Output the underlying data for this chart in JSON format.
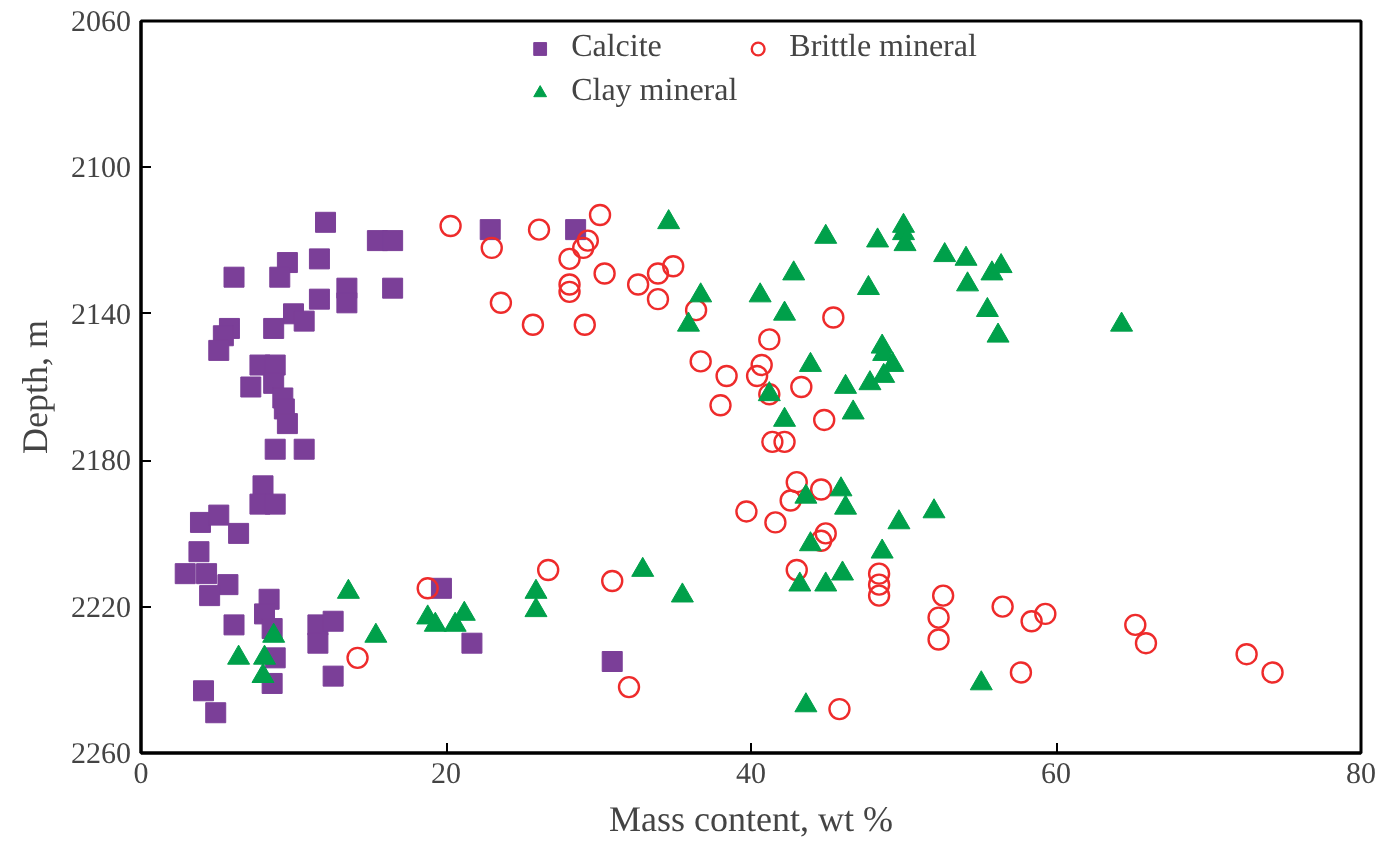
{
  "chart_data": {
    "type": "scatter",
    "xlabel": "Mass content, wt %",
    "ylabel": "Depth, m",
    "xlim": [
      0,
      80
    ],
    "xticks": [
      0,
      20,
      40,
      60,
      80
    ],
    "ylim": [
      2260,
      2060
    ],
    "yticks": [
      2060,
      2100,
      2140,
      2180,
      2220,
      2260
    ],
    "grid": false,
    "legend": "top",
    "series": [
      {
        "name": "Calcite",
        "color": "#7b3f98",
        "marker": "square",
        "x": [
          12.1,
          22.9,
          28.5,
          15.5,
          16.5,
          9.6,
          11.7,
          6.1,
          9.1,
          13.5,
          16.5,
          13.5,
          11.7,
          10.0,
          10.7,
          8.7,
          5.8,
          5.4,
          5.1,
          7.8,
          8.8,
          7.2,
          8.7,
          9.3,
          9.4,
          9.6,
          8.8,
          10.7,
          8.0,
          7.8,
          8.8,
          3.9,
          5.1,
          6.4,
          3.8,
          2.9,
          4.3,
          5.7,
          4.5,
          8.4,
          8.1,
          8.6,
          6.1,
          11.6,
          12.6,
          11.6,
          8.8,
          8.6,
          12.6,
          4.1,
          4.9,
          19.7,
          21.7,
          30.9
        ],
        "values": [
          2115,
          2117,
          2117,
          2120,
          2120,
          2126,
          2125,
          2130,
          2130,
          2133,
          2133,
          2137,
          2136,
          2140,
          2142,
          2144,
          2144,
          2146,
          2150,
          2154,
          2154,
          2160,
          2159,
          2163,
          2166,
          2170,
          2177,
          2177,
          2187,
          2192,
          2192,
          2197,
          2195,
          2200,
          2205,
          2211,
          2211,
          2214,
          2217,
          2218,
          2222,
          2226,
          2225,
          2225,
          2224,
          2230,
          2234,
          2241,
          2239,
          2243,
          2249,
          2215,
          2230,
          2235
        ]
      },
      {
        "name": "Brittle mineral",
        "color": "#ee2b2b",
        "marker": "circle_open",
        "x": [
          20.3,
          23.0,
          23.6,
          18.8,
          14.2,
          26.1,
          30.1,
          29.3,
          29.0,
          28.1,
          30.4,
          28.1,
          28.1,
          32.6,
          25.7,
          29.1,
          26.7,
          30.9,
          32.0,
          33.9,
          34.9,
          33.9,
          36.4,
          45.4,
          41.2,
          36.7,
          40.7,
          40.4,
          38.4,
          41.2,
          43.3,
          38.0,
          44.8,
          41.4,
          42.2,
          43.0,
          44.6,
          42.6,
          39.7,
          41.6,
          44.9,
          44.6,
          43.0,
          48.4,
          48.4,
          48.4,
          52.6,
          52.3,
          52.3,
          45.8,
          56.5,
          58.4,
          59.3,
          57.7,
          65.2,
          65.9,
          72.5,
          74.2
        ],
        "values": [
          2116,
          2122,
          2137,
          2215,
          2234,
          2117,
          2113,
          2120,
          2122,
          2125,
          2129,
          2132,
          2134,
          2132,
          2143,
          2143,
          2210,
          2213,
          2242,
          2129,
          2127,
          2136,
          2139,
          2141,
          2147,
          2153,
          2154,
          2157,
          2157,
          2162,
          2160,
          2165,
          2169,
          2175,
          2175,
          2186,
          2188,
          2191,
          2194,
          2197,
          2200,
          2202,
          2210,
          2211,
          2214,
          2217,
          2217,
          2223,
          2229,
          2248,
          2220,
          2224,
          2222,
          2238,
          2225,
          2230,
          2233,
          2238
        ]
      },
      {
        "name": "Clay mineral",
        "color": "#00a04a",
        "marker": "triangle",
        "x": [
          13.6,
          18.8,
          19.3,
          20.6,
          21.2,
          15.4,
          8.7,
          6.4,
          8.1,
          8.0,
          25.9,
          25.9,
          32.9,
          34.6,
          35.5,
          44.9,
          48.3,
          50.0,
          50.0,
          50.1,
          52.7,
          54.1,
          55.8,
          54.2,
          42.8,
          36.7,
          40.6,
          47.7,
          35.9,
          42.2,
          55.5,
          56.2,
          48.6,
          48.7,
          49.3,
          48.7,
          47.8,
          46.2,
          43.9,
          41.2,
          46.7,
          42.2,
          45.9,
          46.2,
          43.6,
          49.7,
          52.0,
          43.9,
          48.6,
          43.2,
          44.9,
          46.0,
          43.6,
          55.1,
          64.3,
          56.4
        ],
        "values": [
          2216,
          2223,
          2225,
          2225,
          2222,
          2228,
          2228,
          2234,
          2234,
          2239,
          2216,
          2221,
          2210,
          2115,
          2217,
          2119,
          2120,
          2116,
          2118,
          2121,
          2124,
          2125,
          2129,
          2132,
          2129,
          2135,
          2135,
          2133,
          2143,
          2140,
          2139,
          2146,
          2149,
          2151,
          2154,
          2157,
          2159,
          2160,
          2154,
          2162,
          2167,
          2169,
          2188,
          2193,
          2190,
          2197,
          2194,
          2203,
          2205,
          2214,
          2214,
          2211,
          2247,
          2241,
          2143,
          2127
        ]
      }
    ]
  }
}
